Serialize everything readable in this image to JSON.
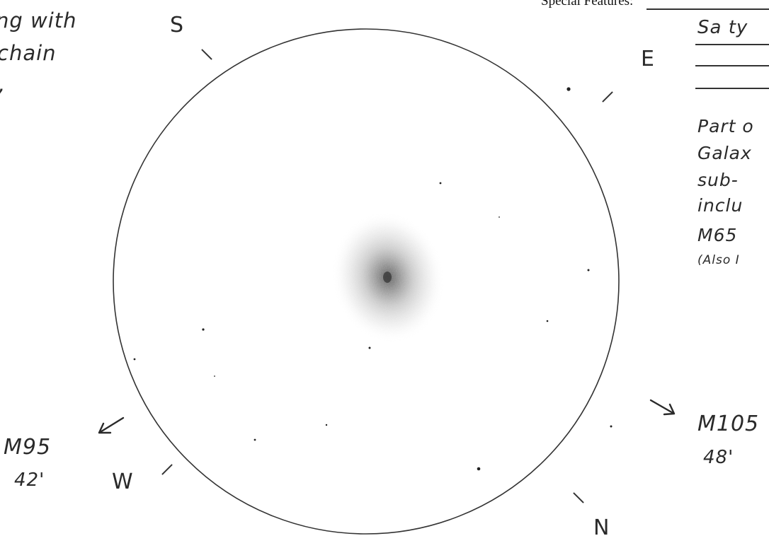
{
  "left_note": [
    "ng with",
    "chain",
    ","
  ],
  "special_features": {
    "label": "Special Features:",
    "line1": "Sa ty",
    "line2": "",
    "line3": ""
  },
  "right_note": [
    "Part o",
    "Galax",
    "sub-",
    "inclu",
    "M65",
    "(Also I"
  ],
  "directions": {
    "south": "S",
    "east": "E",
    "west": "W",
    "north": "N"
  },
  "neighbors": {
    "m95": {
      "name": "M95",
      "distance": "42'"
    },
    "m105": {
      "name": "M105",
      "distance": "48'"
    }
  }
}
